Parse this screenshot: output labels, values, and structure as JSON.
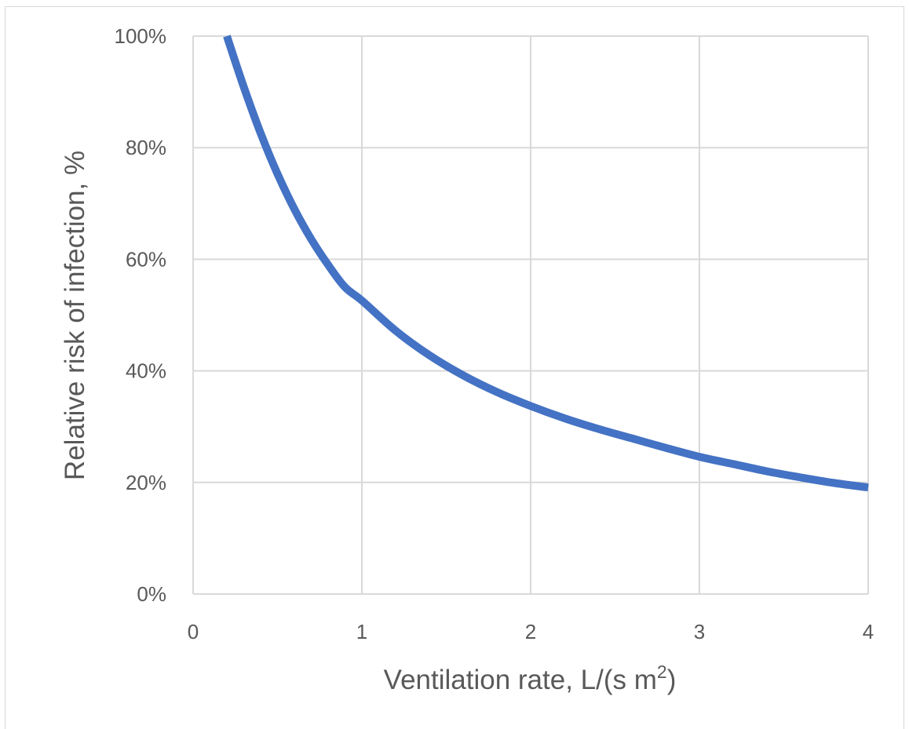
{
  "chart_data": {
    "type": "line",
    "xlabel": "Ventilation rate, L/(s m",
    "xlabel_superscript": "2",
    "xlabel_suffix": ")",
    "ylabel": "Relative risk of infection, %",
    "xlim": [
      0,
      4
    ],
    "ylim": [
      0,
      100
    ],
    "x_ticks": [
      "0",
      "1",
      "2",
      "3",
      "4"
    ],
    "y_ticks": [
      "0%",
      "20%",
      "40%",
      "60%",
      "80%",
      "100%"
    ],
    "grid": true,
    "legend": "none",
    "series": [
      {
        "color": "#4472c4",
        "x": [
          0.2,
          0.3,
          0.4,
          0.5,
          0.6,
          0.7,
          0.8,
          0.9,
          1.0,
          1.2,
          1.4,
          1.6,
          1.8,
          2.0,
          2.2,
          2.4,
          2.6,
          2.8,
          3.0,
          3.2,
          3.4,
          3.6,
          3.8,
          4.0
        ],
        "y": [
          100,
          90.9,
          82.6,
          75.3,
          69.0,
          63.6,
          59.0,
          55.0,
          52.6,
          47.2,
          42.8,
          39.2,
          36.2,
          33.7,
          31.5,
          29.6,
          27.9,
          26.2,
          24.6,
          23.3,
          22.0,
          20.9,
          19.9,
          19.1
        ]
      }
    ]
  }
}
